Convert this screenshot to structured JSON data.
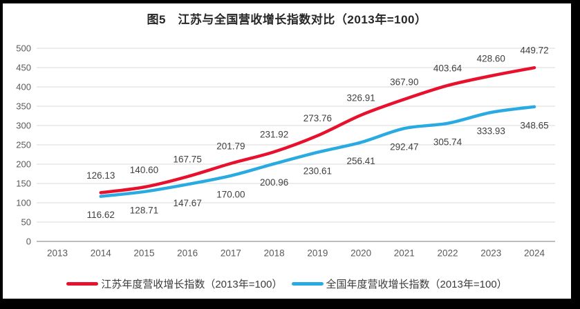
{
  "title": "图5　江苏与全国营收增长指数对比（2013年=100）",
  "colors": {
    "jiangsu_line": "#e8112d",
    "national_line": "#29abe2",
    "gridline": "#d9d9d9",
    "axis_line": "#a6a6a6",
    "tick_text": "#595959",
    "data_label_text": "#404040",
    "title_text": "#262626",
    "frame": "#000000",
    "background": "#ffffff"
  },
  "chart_data": {
    "type": "line",
    "title": "图5　江苏与全国营收增长指数对比（2013年=100）",
    "categories": [
      "2013",
      "2014",
      "2015",
      "2016",
      "2017",
      "2018",
      "2019",
      "2020",
      "2021",
      "2022",
      "2023",
      "2024"
    ],
    "xlabel": "",
    "ylabel": "",
    "ylim": [
      0,
      500
    ],
    "y_step": 50,
    "y_ticks": [
      0,
      50,
      100,
      150,
      200,
      250,
      300,
      350,
      400,
      450,
      500
    ],
    "grid": true,
    "legend_position": "bottom",
    "data_labels": true,
    "series": [
      {
        "name": "江苏年度营收增长指数（2013年=100）",
        "color": "#e8112d",
        "start_category": "2014",
        "values": [
          126.13,
          140.6,
          167.75,
          201.79,
          231.92,
          273.76,
          326.91,
          367.9,
          403.64,
          428.6,
          449.72
        ],
        "label_offset": -25
      },
      {
        "name": "全国年度营收增长指数（2013年=100）",
        "color": "#29abe2",
        "start_category": "2014",
        "values": [
          116.62,
          128.71,
          147.67,
          170.0,
          200.96,
          230.61,
          256.41,
          292.47,
          305.74,
          333.93,
          348.65
        ],
        "label_offset": 27
      }
    ]
  }
}
